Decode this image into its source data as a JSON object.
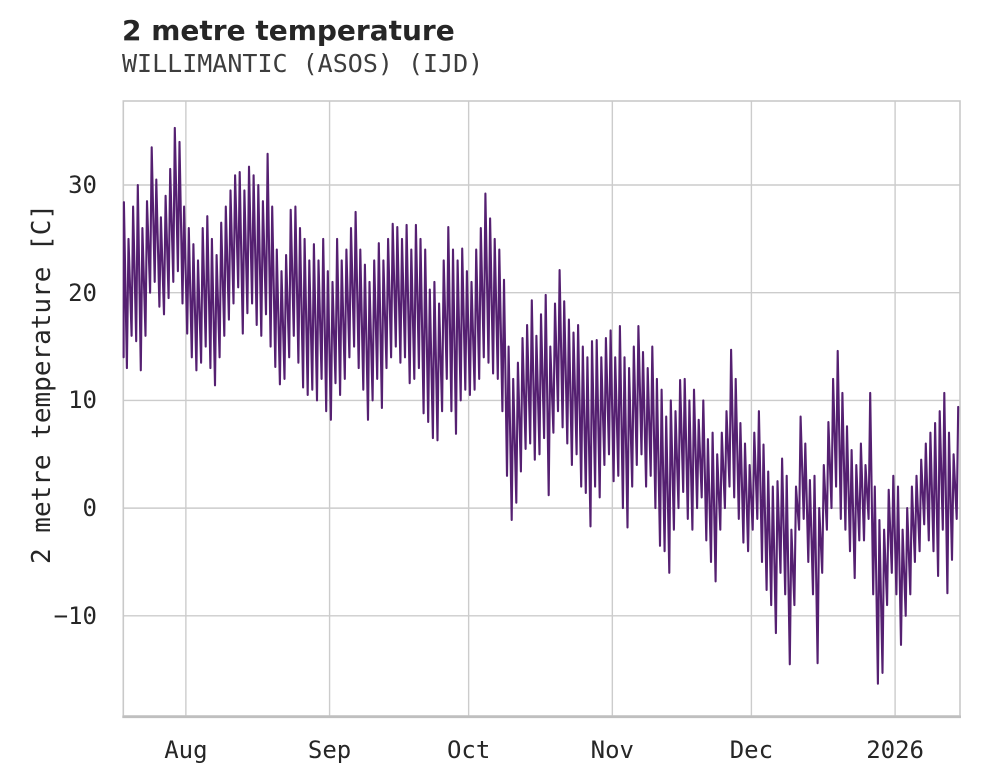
{
  "title": "2 metre temperature",
  "subtitle": "WILLIMANTIC (ASOS) (IJD)",
  "chart_data": {
    "type": "line",
    "title": "2 metre temperature",
    "subtitle": "WILLIMANTIC (ASOS) (IJD)",
    "ylabel": "2 metre temperature [C]",
    "xlabel": "",
    "grid": true,
    "legend": "none",
    "line_color": "#552071",
    "grid_color": "#cccccc",
    "spine_color": "#c9c9c9",
    "background": "#ffffff",
    "ylim": [
      -19.3,
      37.8
    ],
    "xlim_days": [
      0.5,
      181
    ],
    "x_unit": "days since 2025-07-18",
    "x_range_dates": [
      "2025-07-18",
      "2026-01-14"
    ],
    "yticks": [
      {
        "v": 30,
        "label": "30"
      },
      {
        "v": 20,
        "label": "20"
      },
      {
        "v": 10,
        "label": "10"
      },
      {
        "v": 0,
        "label": "0"
      },
      {
        "v": -10,
        "label": "−10"
      }
    ],
    "xticks": [
      {
        "day": 14,
        "label": "Aug"
      },
      {
        "day": 45,
        "label": "Sep"
      },
      {
        "day": 75,
        "label": "Oct"
      },
      {
        "day": 106,
        "label": "Nov"
      },
      {
        "day": 136,
        "label": "Dec"
      },
      {
        "day": 167,
        "label": "2026"
      }
    ],
    "series": [
      {
        "name": "2 metre temperature",
        "sampling": "daily max/min envelope estimated from hourly trace, degrees C, day 0 = 2025-07-18",
        "tmax": [
          28.4,
          25,
          28,
          30,
          26,
          28.5,
          33.5,
          30.5,
          27,
          29,
          31.5,
          35.3,
          34,
          28,
          26,
          24.5,
          23,
          26,
          27.1,
          25,
          23.5,
          26.5,
          28,
          29.5,
          30.9,
          31.2,
          29.5,
          31.7,
          30.9,
          30,
          28.5,
          32.9,
          28,
          24,
          22,
          23.5,
          27.7,
          28,
          26,
          25,
          23,
          24.5,
          23,
          25,
          22,
          21,
          25,
          23,
          24,
          26,
          27.5,
          24,
          22.6,
          21,
          23,
          24.6,
          23,
          25,
          26.4,
          26.1,
          25,
          26.3,
          24,
          26.3,
          25,
          24,
          20.3,
          21,
          19,
          23,
          26.1,
          24,
          23,
          24.1,
          22,
          21,
          24,
          26,
          29.2,
          26.9,
          25,
          24,
          21.2,
          15,
          12,
          13.5,
          15.8,
          17,
          19.3,
          16,
          18,
          19.8,
          15,
          19,
          22.1,
          19.2,
          17.5,
          16.3,
          17,
          15,
          14,
          15.5,
          15.6,
          14,
          15.8,
          16.5,
          14,
          16.9,
          14,
          13,
          15,
          16.9,
          14.5,
          13,
          15,
          12,
          11,
          8.5,
          10,
          9,
          11.9,
          12,
          10,
          11,
          8.2,
          10,
          6.4,
          7,
          5,
          7,
          9,
          14.7,
          12,
          7.9,
          6,
          4,
          7,
          9,
          5.9,
          3.4,
          2,
          2.5,
          4.6,
          3,
          -2,
          2,
          8.5,
          6,
          2.6,
          3,
          0,
          4,
          8,
          12,
          14.6,
          10.7,
          7.6,
          5.4,
          4,
          6,
          4,
          10.7,
          2,
          -1.1,
          -2,
          1.7,
          3,
          2,
          -2,
          0,
          2,
          3,
          4.5,
          6,
          7,
          7.9,
          9,
          10.7,
          7,
          5,
          9.4
        ],
        "tmin": [
          14,
          13,
          16,
          15.5,
          12.8,
          16,
          20,
          21,
          18.7,
          18,
          19.5,
          21,
          22,
          19,
          16.2,
          14,
          12.8,
          13.5,
          15,
          13,
          11.4,
          14,
          16,
          17.5,
          19,
          20.5,
          16.2,
          18.1,
          19,
          17,
          16,
          18,
          15,
          13.1,
          11.5,
          12,
          14,
          16,
          13.5,
          11.2,
          10.5,
          11,
          10,
          12,
          9,
          8.2,
          11.6,
          10.5,
          12,
          14,
          15,
          13,
          11,
          8.2,
          10,
          12,
          9.3,
          13,
          14,
          15,
          13.5,
          14,
          11.6,
          12,
          13,
          8.8,
          8,
          6.5,
          6.3,
          9,
          12,
          9,
          6.9,
          10,
          11,
          10.5,
          11,
          12,
          14,
          13.5,
          12.5,
          12,
          9,
          3,
          -1.1,
          0.5,
          3.4,
          5.5,
          6,
          4.5,
          5,
          6.5,
          1.2,
          7,
          9,
          7.5,
          6,
          4,
          5,
          2,
          1.4,
          -1.7,
          2,
          1,
          4,
          5,
          2.5,
          3,
          0,
          -1.8,
          2,
          4,
          5,
          2,
          3,
          0,
          -3.5,
          -4,
          -6,
          -2,
          0,
          1.5,
          -1,
          -2,
          0,
          1,
          -3,
          -5,
          -6.8,
          -2,
          0,
          2,
          1,
          -1,
          -3.2,
          -4,
          -2,
          -1,
          -5,
          -7.6,
          -9,
          -11.6,
          -6,
          -8,
          -14.5,
          -9,
          -2,
          -1,
          -5,
          -8,
          -14.4,
          -6,
          -2,
          0,
          2,
          -1,
          -2,
          -4,
          -6.5,
          -3,
          -3,
          -1,
          -8,
          -16.3,
          -15.3,
          -9,
          -6,
          -8,
          -12.7,
          -10,
          -8,
          -5,
          -4,
          -1.5,
          -3,
          -4,
          -6.3,
          -2,
          -7.9,
          -4.8,
          -1
        ]
      }
    ]
  }
}
